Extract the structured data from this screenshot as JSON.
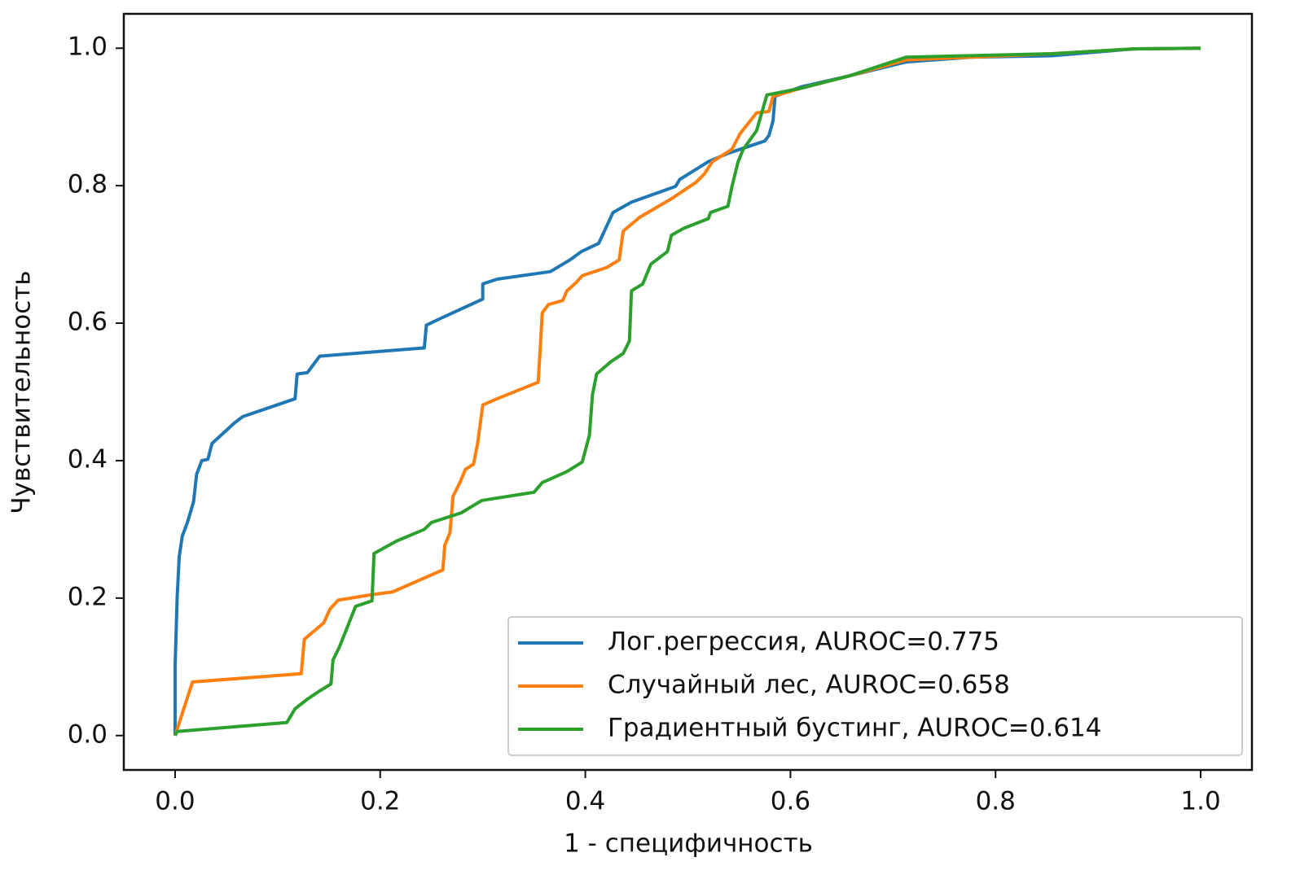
{
  "chart_data": {
    "type": "line",
    "xlabel": "1 - специфичность",
    "ylabel": "Чувствительность",
    "xlim": [
      -0.05,
      1.05
    ],
    "ylim": [
      -0.05,
      1.05
    ],
    "xticks": [
      {
        "value": 0,
        "label": "0.0"
      },
      0.2,
      0.4,
      0.6,
      0.8,
      {
        "value": 1,
        "label": "1.0"
      }
    ],
    "yticks": [
      {
        "value": 0,
        "label": "0.0"
      },
      0.2,
      0.4,
      0.6,
      0.8,
      {
        "value": 1,
        "label": "1.0"
      }
    ],
    "grid": false,
    "legend": "lower right",
    "series": [
      {
        "name": "Лог.регрессия, AUROC=0.775",
        "color": "#1f77b4",
        "x": [
          0,
          0,
          0.002,
          0.004,
          0.007,
          0.012,
          0.018,
          0.021,
          0.026,
          0.032,
          0.036,
          0.058,
          0.066,
          0.117,
          0.119,
          0.129,
          0.141,
          0.243,
          0.245,
          0.259,
          0.3,
          0.3,
          0.314,
          0.366,
          0.385,
          0.396,
          0.413,
          0.427,
          0.445,
          0.488,
          0.492,
          0.52,
          0.539,
          0.563,
          0.575,
          0.579,
          0.583,
          0.585,
          0.611,
          0.658,
          0.713,
          0.776,
          0.855,
          0.934,
          1
        ],
        "values": [
          0,
          0.1,
          0.2,
          0.26,
          0.29,
          0.31,
          0.34,
          0.38,
          0.4,
          0.402,
          0.425,
          0.455,
          0.464,
          0.49,
          0.526,
          0.528,
          0.552,
          0.564,
          0.597,
          0.607,
          0.635,
          0.657,
          0.664,
          0.675,
          0.692,
          0.704,
          0.716,
          0.761,
          0.776,
          0.799,
          0.809,
          0.835,
          0.847,
          0.859,
          0.865,
          0.873,
          0.894,
          0.93,
          0.944,
          0.96,
          0.98,
          0.987,
          0.989,
          0.999,
          1
        ]
      },
      {
        "name": "Случайный лес, AUROC=0.658",
        "color": "#ff7f0e",
        "x": [
          0,
          0.017,
          0.123,
          0.126,
          0.145,
          0.151,
          0.159,
          0.192,
          0.212,
          0.261,
          0.263,
          0.268,
          0.271,
          0.278,
          0.283,
          0.291,
          0.295,
          0.3,
          0.314,
          0.354,
          0.356,
          0.358,
          0.364,
          0.378,
          0.382,
          0.391,
          0.397,
          0.421,
          0.433,
          0.437,
          0.453,
          0.484,
          0.508,
          0.516,
          0.524,
          0.543,
          0.551,
          0.567,
          0.579,
          0.583,
          0.611,
          0.658,
          0.713,
          0.776,
          0.855,
          0.934,
          1
        ],
        "values": [
          0,
          0.078,
          0.09,
          0.14,
          0.164,
          0.184,
          0.197,
          0.205,
          0.209,
          0.241,
          0.277,
          0.295,
          0.348,
          0.369,
          0.387,
          0.395,
          0.425,
          0.481,
          0.49,
          0.514,
          0.562,
          0.615,
          0.627,
          0.633,
          0.647,
          0.659,
          0.669,
          0.681,
          0.692,
          0.734,
          0.754,
          0.781,
          0.805,
          0.817,
          0.835,
          0.853,
          0.876,
          0.906,
          0.908,
          0.93,
          0.942,
          0.96,
          0.983,
          0.987,
          0.992,
          0.999,
          1
        ]
      },
      {
        "name": "Градиентный бустинг, AUROC=0.614",
        "color": "#2ca02c",
        "x": [
          0,
          0.002,
          0.109,
          0.117,
          0.129,
          0.141,
          0.152,
          0.154,
          0.16,
          0.168,
          0.176,
          0.192,
          0.194,
          0.216,
          0.243,
          0.25,
          0.279,
          0.299,
          0.35,
          0.358,
          0.382,
          0.397,
          0.404,
          0.407,
          0.411,
          0.425,
          0.437,
          0.443,
          0.445,
          0.456,
          0.464,
          0.48,
          0.484,
          0.496,
          0.52,
          0.522,
          0.539,
          0.543,
          0.549,
          0.554,
          0.567,
          0.577,
          0.611,
          0.658,
          0.713,
          0.855,
          0.934,
          1
        ],
        "values": [
          0,
          0.006,
          0.019,
          0.039,
          0.053,
          0.065,
          0.075,
          0.11,
          0.128,
          0.158,
          0.188,
          0.196,
          0.265,
          0.283,
          0.3,
          0.31,
          0.324,
          0.342,
          0.354,
          0.368,
          0.384,
          0.398,
          0.437,
          0.496,
          0.526,
          0.544,
          0.556,
          0.574,
          0.647,
          0.657,
          0.686,
          0.704,
          0.728,
          0.738,
          0.752,
          0.761,
          0.77,
          0.799,
          0.835,
          0.853,
          0.88,
          0.932,
          0.942,
          0.96,
          0.987,
          0.992,
          0.999,
          1
        ]
      }
    ]
  }
}
